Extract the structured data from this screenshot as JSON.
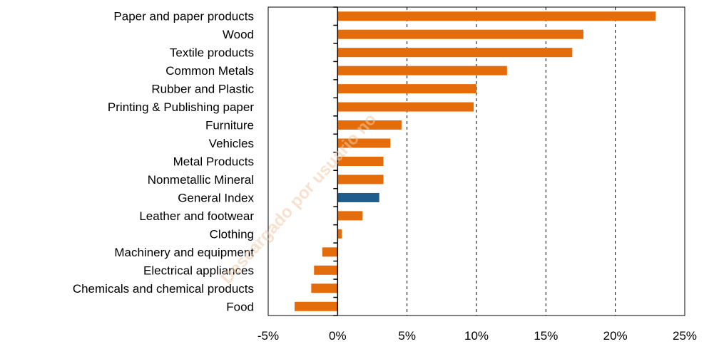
{
  "chart_data": {
    "type": "bar",
    "orientation": "horizontal",
    "categories": [
      "Paper and paper products",
      "Wood",
      "Textile products",
      "Common Metals",
      "Rubber and Plastic",
      "Printing & Publishing paper",
      "Furniture",
      "Vehicles",
      "Metal Products",
      "Nonmetallic Mineral",
      "General Index",
      "Leather and footwear",
      "Clothing",
      "Machinery and equipment",
      "Electrical appliances",
      "Chemicals and chemical products",
      "Food"
    ],
    "values": [
      22.9,
      17.7,
      16.9,
      12.2,
      10.0,
      9.8,
      4.6,
      3.8,
      3.3,
      3.3,
      3.0,
      1.8,
      0.3,
      -1.1,
      -1.7,
      -1.9,
      -3.1
    ],
    "highlight_category": "General Index",
    "xlim": [
      -5,
      25
    ],
    "xticks": [
      -5,
      0,
      5,
      10,
      15,
      20,
      25
    ],
    "xtick_labels": [
      "-5%",
      "0%",
      "5%",
      "10%",
      "15%",
      "20%",
      "25%"
    ],
    "grid": "vertical dashed at 5%, 10%, 15%, 20%",
    "legend": "none",
    "title": "",
    "xlabel": "",
    "ylabel": ""
  },
  "colors": {
    "bar": "#e46c0a",
    "highlight_bar": "#1f5c8b",
    "axis": "#000000",
    "grid": "#000000"
  },
  "watermark": {
    "text": "Descargado por usuario no"
  }
}
